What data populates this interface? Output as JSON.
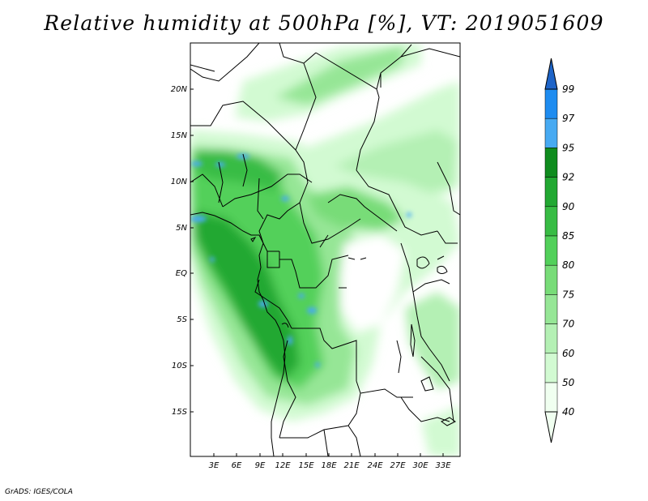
{
  "title": "Relative humidity at 500hPa [%], VT: 2019051609",
  "credit": "GrADS: IGES/COLA",
  "axes": {
    "lat_labels": [
      "20N",
      "15N",
      "10N",
      "5N",
      "EQ",
      "5S",
      "10S",
      "15S"
    ],
    "lon_labels": [
      "3E",
      "6E",
      "9E",
      "12E",
      "15E",
      "18E",
      "21E",
      "24E",
      "27E",
      "30E",
      "33E"
    ]
  },
  "colorbar": {
    "levels": [
      "99",
      "97",
      "95",
      "92",
      "90",
      "85",
      "80",
      "75",
      "70",
      "60",
      "50",
      "40"
    ],
    "colors": [
      "#1e64c8",
      "#1e8cf0",
      "#47aaf2",
      "#0f8c1e",
      "#22a832",
      "#38bc44",
      "#52d05a",
      "#78dc78",
      "#96e696",
      "#b4f0b4",
      "#d2fad2",
      "#f0fff0"
    ]
  },
  "colors": {
    "land_green": "#52d05a",
    "light_green": "#b4f0b4",
    "dark_green": "#22a832",
    "blue": "#47aaf2"
  }
}
